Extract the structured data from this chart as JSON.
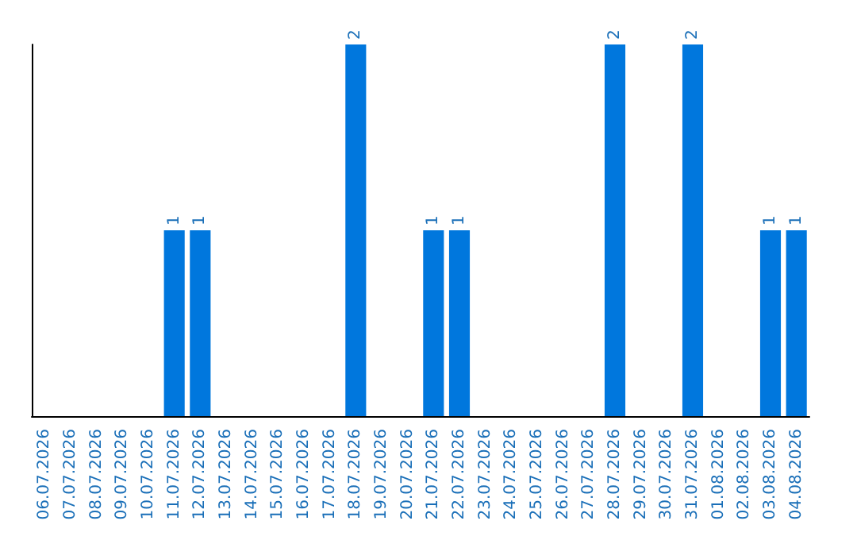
{
  "chart_data": {
    "type": "bar",
    "categories": [
      "06.07.2026",
      "07.07.2026",
      "08.07.2026",
      "09.07.2026",
      "10.07.2026",
      "11.07.2026",
      "12.07.2026",
      "13.07.2026",
      "14.07.2026",
      "15.07.2026",
      "16.07.2026",
      "17.07.2026",
      "18.07.2026",
      "19.07.2026",
      "20.07.2026",
      "21.07.2026",
      "22.07.2026",
      "23.07.2026",
      "24.07.2026",
      "25.07.2026",
      "26.07.2026",
      "27.07.2026",
      "28.07.2026",
      "29.07.2026",
      "30.07.2026",
      "31.07.2026",
      "01.08.2026",
      "02.08.2026",
      "03.08.2026",
      "04.08.2026"
    ],
    "values": [
      0,
      0,
      0,
      0,
      0,
      1,
      1,
      0,
      0,
      0,
      0,
      0,
      2,
      0,
      0,
      1,
      1,
      0,
      0,
      0,
      0,
      0,
      2,
      0,
      0,
      2,
      0,
      0,
      1,
      1
    ],
    "value_labels": [
      null,
      null,
      null,
      null,
      null,
      "1",
      "1",
      null,
      null,
      null,
      null,
      null,
      "2",
      null,
      null,
      "1",
      "1",
      null,
      null,
      null,
      null,
      null,
      "2",
      null,
      null,
      "2",
      null,
      null,
      "1",
      "1"
    ],
    "color": "#0077dd",
    "grid": false,
    "tick_labels": "x"
  }
}
